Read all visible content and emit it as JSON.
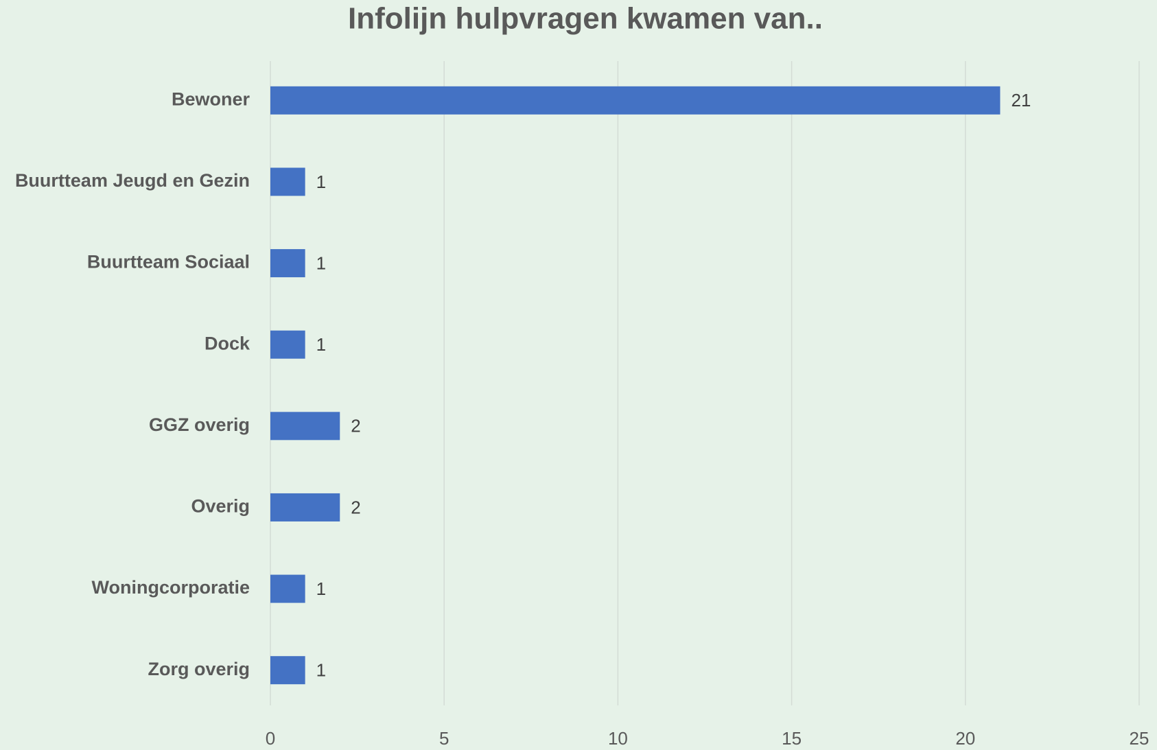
{
  "chart_data": {
    "type": "barh",
    "title": "Infolijn hulpvragen kwamen van..",
    "categories": [
      "Bewoner",
      "Buurtteam Jeugd en Gezin",
      "Buurtteam Sociaal",
      "Dock",
      "GGZ overig",
      "Overig",
      "Woningcorporatie",
      "Zorg overig"
    ],
    "values": [
      21,
      1,
      1,
      1,
      2,
      2,
      1,
      1
    ],
    "color": "#4472c4",
    "xlim": [
      0,
      25
    ],
    "xticks": [
      0,
      5,
      10,
      15,
      20,
      25
    ],
    "grid": true
  }
}
